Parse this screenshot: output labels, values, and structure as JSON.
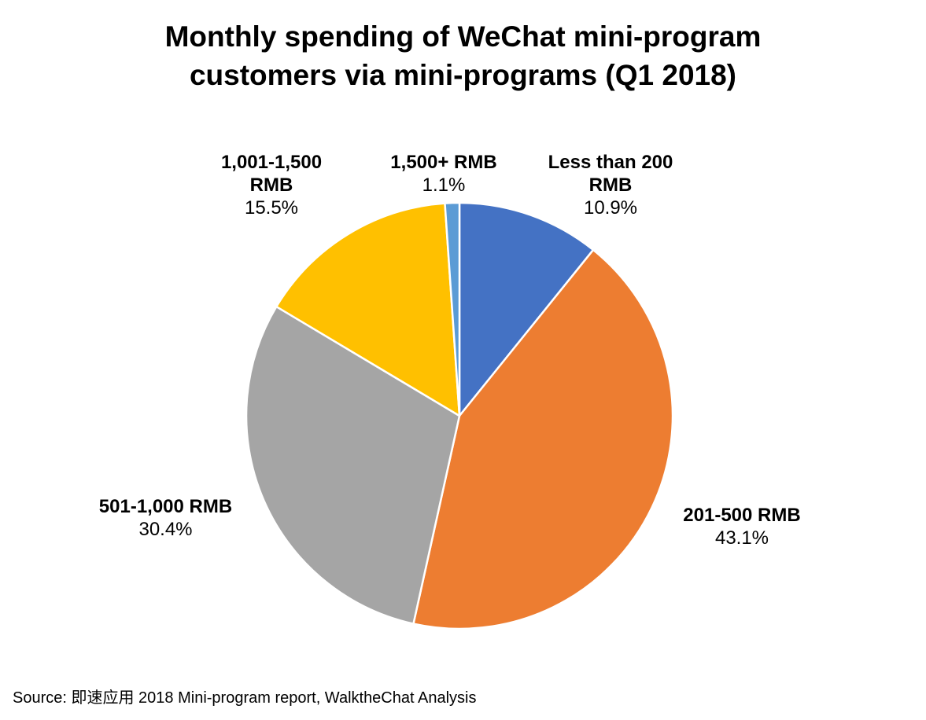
{
  "chart_data": {
    "type": "pie",
    "title": "Monthly spending of WeChat mini-program customers via mini-programs (Q1 2018)",
    "title_lines": [
      "Monthly spending of WeChat mini-program",
      "customers via mini-programs (Q1 2018)"
    ],
    "slices": [
      {
        "label": "Less than 200 RMB",
        "label_lines": [
          "Less than 200",
          "RMB"
        ],
        "value": 10.9,
        "value_label": "10.9%",
        "color": "#4472C4"
      },
      {
        "label": "201-500 RMB",
        "label_lines": [
          "201-500 RMB"
        ],
        "value": 43.1,
        "value_label": "43.1%",
        "color": "#ED7D31"
      },
      {
        "label": "501-1,000 RMB",
        "label_lines": [
          "501-1,000 RMB"
        ],
        "value": 30.4,
        "value_label": "30.4%",
        "color": "#A5A5A5"
      },
      {
        "label": "1,001-1,500 RMB",
        "label_lines": [
          "1,001-1,500",
          "RMB"
        ],
        "value": 15.5,
        "value_label": "15.5%",
        "color": "#FFC000"
      },
      {
        "label": "1,500+ RMB",
        "label_lines": [
          "1,500+ RMB"
        ],
        "value": 1.1,
        "value_label": "1.1%",
        "color": "#5B9BD5"
      }
    ],
    "start": "12 o'clock",
    "direction": "clockwise",
    "legend": "none",
    "data_labels": "outside"
  },
  "source_note": "Source: 即速应用 2018 Mini-program report, WalktheChat Analysis"
}
